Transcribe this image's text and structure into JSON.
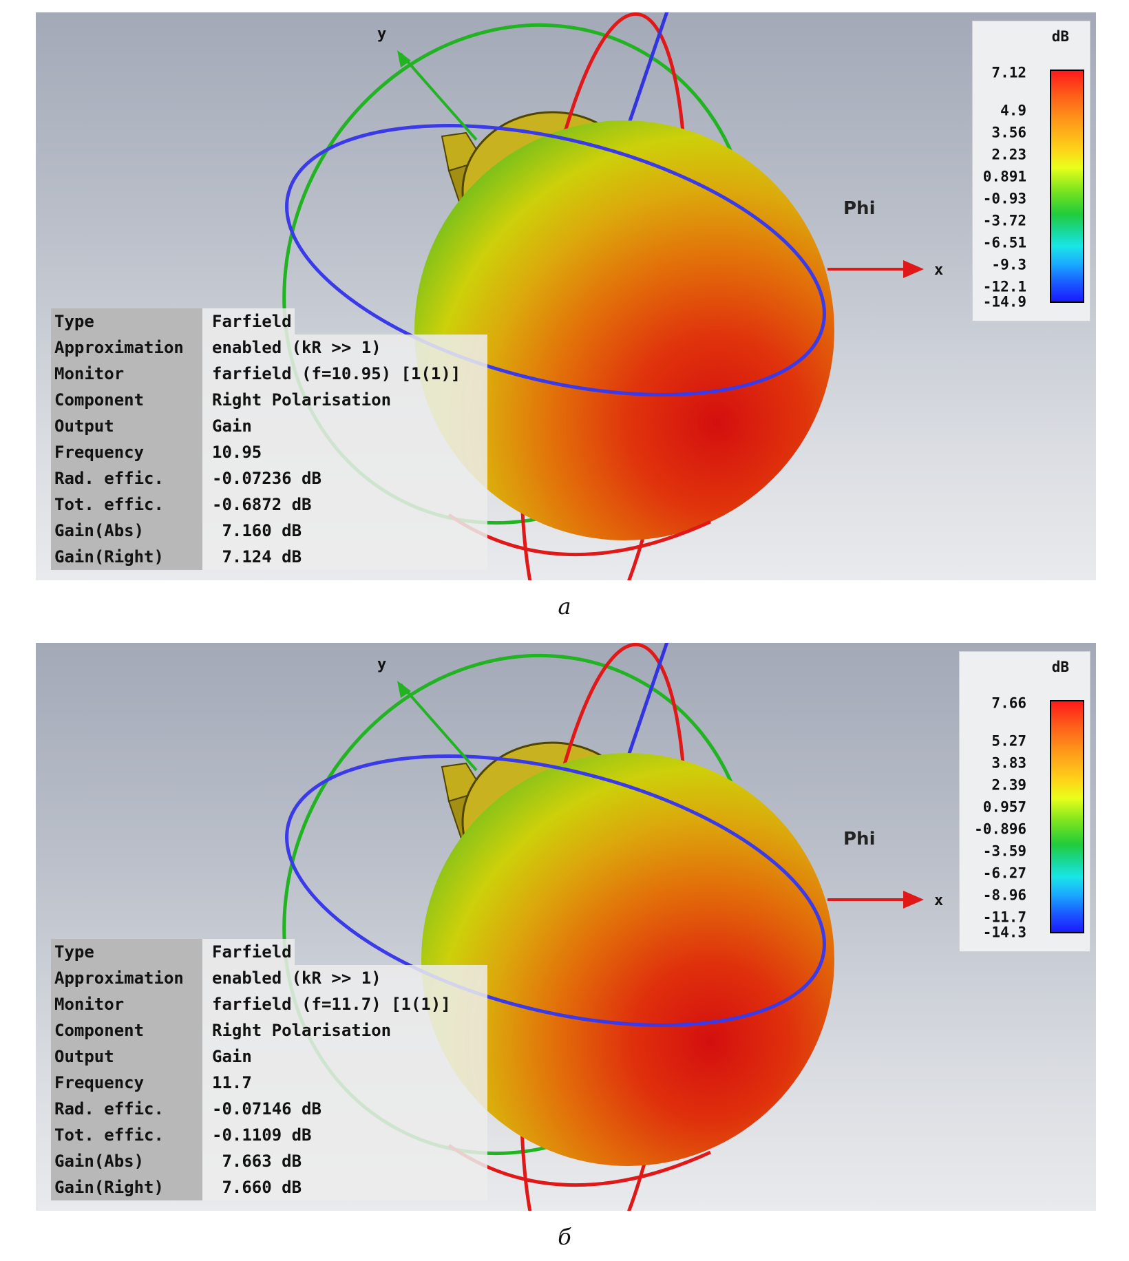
{
  "axes": {
    "x": "x",
    "y": "y",
    "phi": "Phi"
  },
  "panels": [
    {
      "caption": "а",
      "legend": {
        "unit": "dB",
        "ticks": [
          "7.12",
          "4.9",
          "3.56",
          "2.23",
          "0.891",
          "-0.93",
          "-3.72",
          "-6.51",
          "-9.3",
          "-12.1",
          "-14.9"
        ]
      },
      "info": [
        {
          "key": "Type",
          "value": "Farfield"
        },
        {
          "key": "Approximation",
          "value": "enabled (kR >> 1)"
        },
        {
          "key": "Monitor",
          "value": "farfield (f=10.95) [1(1)]"
        },
        {
          "key": "Component",
          "value": "Right Polarisation"
        },
        {
          "key": "Output",
          "value": "Gain"
        },
        {
          "key": "Frequency",
          "value": "10.95"
        },
        {
          "key": "Rad. effic.",
          "value": "-0.07236 dB"
        },
        {
          "key": "Tot. effic.",
          "value": "-0.6872 dB"
        },
        {
          "key": "Gain(Abs)",
          "value": " 7.160 dB"
        },
        {
          "key": "Gain(Right)",
          "value": " 7.124 dB"
        }
      ]
    },
    {
      "caption": "б",
      "legend": {
        "unit": "dB",
        "ticks": [
          "7.66",
          "5.27",
          "3.83",
          "2.39",
          "0.957",
          "-0.896",
          "-3.59",
          "-6.27",
          "-8.96",
          "-11.7",
          "-14.3"
        ]
      },
      "info": [
        {
          "key": "Type",
          "value": "Farfield"
        },
        {
          "key": "Approximation",
          "value": "enabled (kR >> 1)"
        },
        {
          "key": "Monitor",
          "value": "farfield (f=11.7) [1(1)]"
        },
        {
          "key": "Component",
          "value": "Right Polarisation"
        },
        {
          "key": "Output",
          "value": "Gain"
        },
        {
          "key": "Frequency",
          "value": "11.7"
        },
        {
          "key": "Rad. effic.",
          "value": "-0.07146 dB"
        },
        {
          "key": "Tot. effic.",
          "value": "-0.1109 dB"
        },
        {
          "key": "Gain(Abs)",
          "value": " 7.663 dB"
        },
        {
          "key": "Gain(Right)",
          "value": " 7.660 dB"
        }
      ]
    }
  ]
}
